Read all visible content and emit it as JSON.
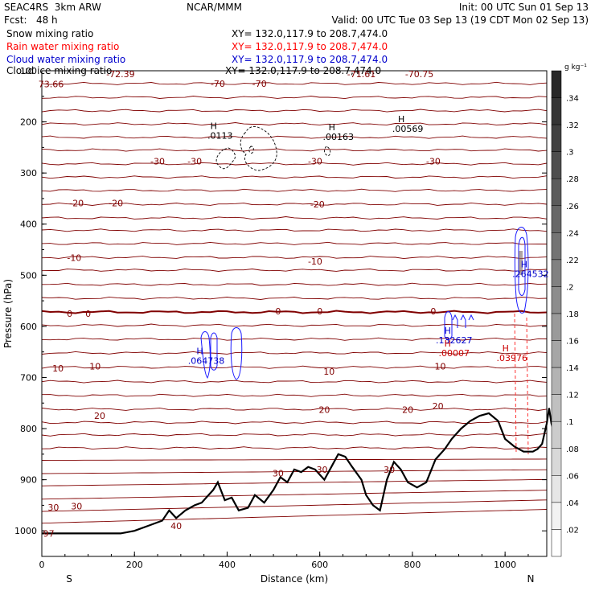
{
  "header": {
    "model": "SEAC4RS  3km ARW",
    "org": "NCAR/MMM",
    "init": "Init: 00 UTC Sun 01 Sep 13",
    "fcst": "Fcst:   48 h",
    "valid": "Valid: 00 UTC Tue 03 Sep 13 (19 CDT Mon 02 Sep 13)",
    "fields": [
      {
        "name": "Snow mixing ratio",
        "xy": "XY= 132.0,117.9 to 208.7,474.0",
        "color": "#000000"
      },
      {
        "name": "Rain water mixing ratio",
        "xy": "XY= 132.0,117.9 to 208.7,474.0",
        "color": "#ff0000"
      },
      {
        "name": "Cloud water mixing ratio",
        "xy": "XY= 132.0,117.9 to 208.7,474.0",
        "color": "#0000cc"
      },
      {
        "name": "Cloud ice mixing ratio",
        "xy": "XY= 132.0,117.9 to 208.7,474.0",
        "color": "#000000"
      }
    ]
  },
  "chart_data": {
    "type": "cross-section",
    "xlabel": "Distance (km)",
    "ylabel": "Pressure (hPa)",
    "xlim": [
      0,
      1090
    ],
    "ylim": [
      1050,
      100
    ],
    "x_ticks": [
      0,
      200,
      400,
      600,
      800,
      1000
    ],
    "y_ticks": [
      100,
      200,
      300,
      400,
      500,
      600,
      700,
      800,
      900,
      1000
    ],
    "y_tick_top_label": "100",
    "endpoints": {
      "left": "S",
      "right": "N"
    },
    "temperature_color": "#800000",
    "terrain_color": "#000000",
    "temperature_contours": [
      {
        "label": "-72.39",
        "x": 170,
        "p": 106
      },
      {
        "label": "-70",
        "x": 380,
        "p": 125
      },
      {
        "label": "-70",
        "x": 470,
        "p": 125
      },
      {
        "label": "-71.61",
        "x": 690,
        "p": 106
      },
      {
        "label": "-70.75",
        "x": 815,
        "p": 106
      },
      {
        "label": "73.66",
        "x": 20,
        "p": 126
      },
      {
        "label": "-30",
        "x": 250,
        "p": 277
      },
      {
        "label": "-30",
        "x": 330,
        "p": 277
      },
      {
        "label": "-30",
        "x": 590,
        "p": 277
      },
      {
        "label": "-30",
        "x": 845,
        "p": 277
      },
      {
        "label": "-20",
        "x": 75,
        "p": 359
      },
      {
        "label": "-20",
        "x": 160,
        "p": 359
      },
      {
        "label": "-20",
        "x": 595,
        "p": 361
      },
      {
        "label": "-10",
        "x": 70,
        "p": 466
      },
      {
        "label": "-10",
        "x": 590,
        "p": 473
      },
      {
        "label": "0",
        "x": 60,
        "p": 575
      },
      {
        "label": "0",
        "x": 100,
        "p": 575
      },
      {
        "label": "0",
        "x": 510,
        "p": 570
      },
      {
        "label": "0",
        "x": 600,
        "p": 570
      },
      {
        "label": "0",
        "x": 845,
        "p": 570
      },
      {
        "label": "10",
        "x": 35,
        "p": 682
      },
      {
        "label": "10",
        "x": 115,
        "p": 678
      },
      {
        "label": "10",
        "x": 620,
        "p": 688
      },
      {
        "label": "10",
        "x": 860,
        "p": 678
      },
      {
        "label": "20",
        "x": 125,
        "p": 775
      },
      {
        "label": "20",
        "x": 610,
        "p": 763
      },
      {
        "label": "20",
        "x": 790,
        "p": 763
      },
      {
        "label": "20",
        "x": 855,
        "p": 756
      },
      {
        "label": "30",
        "x": 510,
        "p": 887
      },
      {
        "label": "30",
        "x": 605,
        "p": 880
      },
      {
        "label": "30",
        "x": 750,
        "p": 880
      },
      {
        "label": "30",
        "x": 25,
        "p": 954
      },
      {
        "label": "30",
        "x": 75,
        "p": 952
      },
      {
        "label": "40",
        "x": 290,
        "p": 990
      },
      {
        "label": "97",
        "x": 15,
        "p": 1005
      }
    ],
    "maxima": [
      {
        "label": ".0113",
        "x": 385,
        "p": 230,
        "color": "#000000"
      },
      {
        "label": ".00163",
        "x": 640,
        "p": 232,
        "color": "#000000"
      },
      {
        "label": ".00569",
        "x": 790,
        "p": 216,
        "color": "#000000"
      },
      {
        "label": ".264532",
        "x": 1055,
        "p": 500,
        "color": "#0000cc"
      },
      {
        "label": ".064738",
        "x": 355,
        "p": 670,
        "color": "#0000cc"
      },
      {
        "label": ".132627",
        "x": 890,
        "p": 630,
        "color": "#0000cc"
      },
      {
        "label": ".00007",
        "x": 890,
        "p": 655,
        "color": "#cc0000"
      },
      {
        "label": ".03976",
        "x": 1015,
        "p": 665,
        "color": "#cc0000"
      }
    ],
    "colorbar": {
      "unit": "g kg⁻¹",
      "labels": [
        ".34",
        ".32",
        ".3",
        ".28",
        ".26",
        ".24",
        ".22",
        ".2",
        ".18",
        ".16",
        ".14",
        ".12",
        ".1",
        ".08",
        ".06",
        ".04",
        ".02"
      ]
    }
  }
}
